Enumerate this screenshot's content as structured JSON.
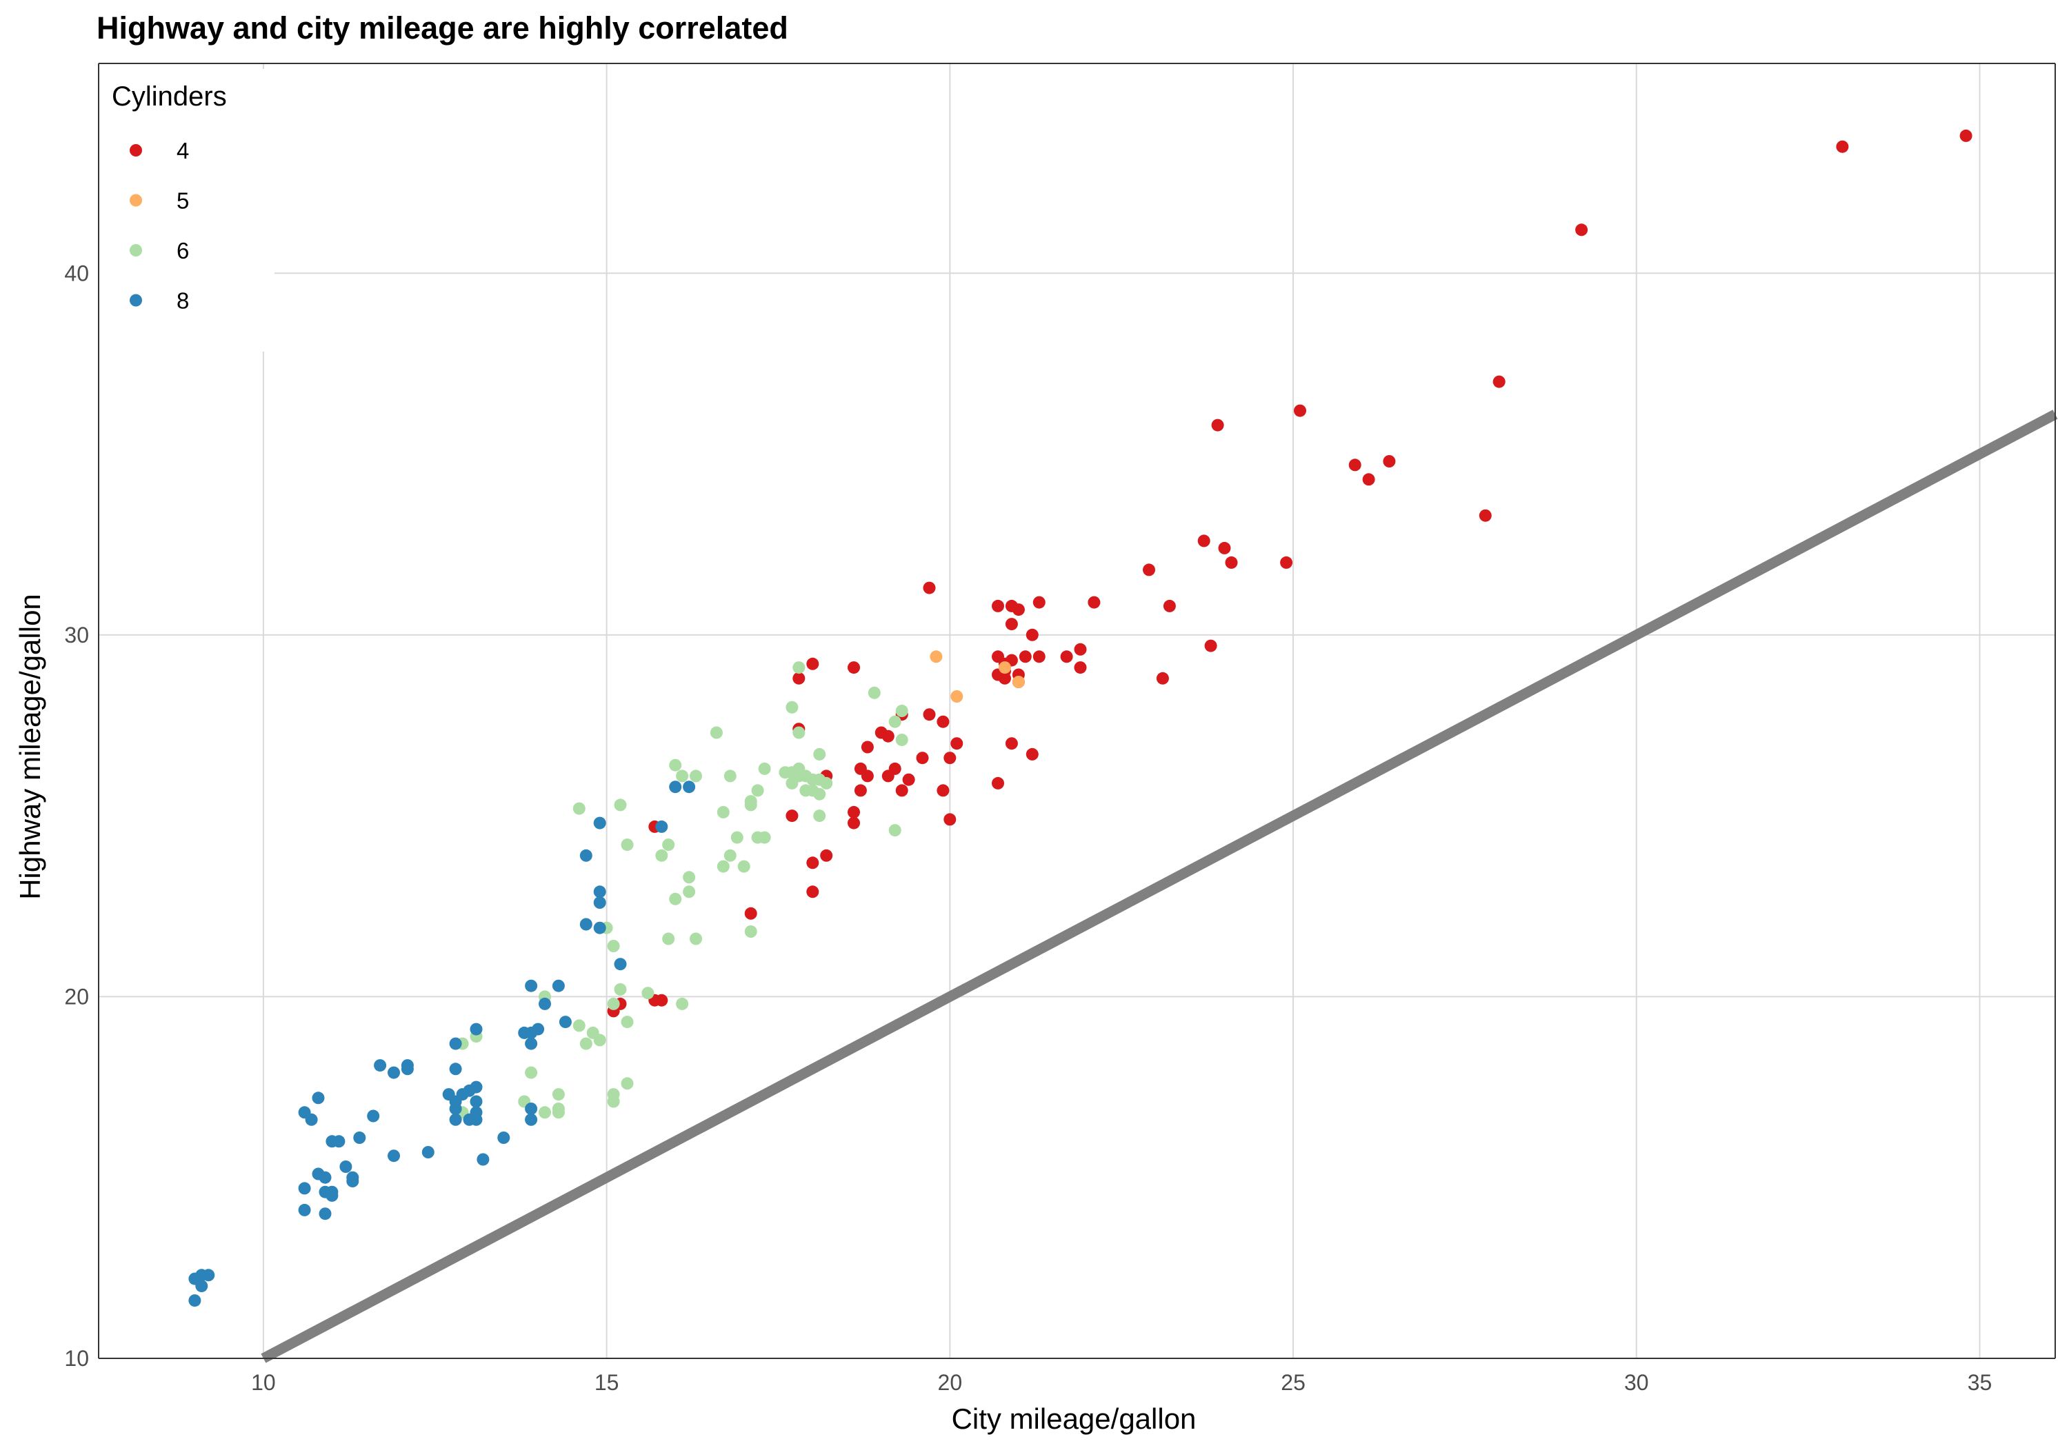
{
  "chart_data": {
    "type": "scatter",
    "title": "Highway and city mileage are highly correlated",
    "xlabel": "City mileage/gallon",
    "ylabel": "Highway mileage/gallon",
    "xlim": [
      7.6,
      36.1
    ],
    "ylim": [
      10,
      45.8
    ],
    "xticks": [
      10,
      15,
      20,
      25,
      30,
      35
    ],
    "yticks": [
      10,
      20,
      30,
      40
    ],
    "grid": true,
    "legend": {
      "title": "Cylinders",
      "placement": "top-left",
      "entries": [
        {
          "label": "4",
          "color": "#d7191c"
        },
        {
          "label": "5",
          "color": "#fdae61"
        },
        {
          "label": "6",
          "color": "#abdda4"
        },
        {
          "label": "8",
          "color": "#2b83ba"
        }
      ]
    },
    "reference_line": {
      "type": "y = x",
      "color": "#808080"
    },
    "series": [
      {
        "name": "4",
        "color": "#d7191c",
        "points": [
          [
            34.8,
            43.8
          ],
          [
            33.0,
            43.5
          ],
          [
            29.2,
            41.2
          ],
          [
            28.0,
            37.0
          ],
          [
            27.8,
            33.3
          ],
          [
            25.1,
            36.2
          ],
          [
            26.4,
            34.8
          ],
          [
            25.9,
            34.7
          ],
          [
            26.1,
            34.3
          ],
          [
            24.9,
            32.0
          ],
          [
            23.9,
            35.8
          ],
          [
            23.7,
            32.6
          ],
          [
            24.0,
            32.4
          ],
          [
            24.1,
            32.0
          ],
          [
            22.9,
            31.8
          ],
          [
            23.8,
            29.7
          ],
          [
            23.2,
            30.8
          ],
          [
            23.1,
            28.8
          ],
          [
            22.1,
            30.9
          ],
          [
            21.9,
            29.6
          ],
          [
            21.9,
            29.1
          ],
          [
            21.7,
            29.4
          ],
          [
            21.3,
            30.9
          ],
          [
            21.2,
            30.0
          ],
          [
            21.3,
            29.4
          ],
          [
            21.0,
            30.7
          ],
          [
            20.9,
            30.3
          ],
          [
            20.7,
            30.8
          ],
          [
            20.9,
            30.8
          ],
          [
            20.7,
            29.4
          ],
          [
            20.8,
            29.2
          ],
          [
            20.9,
            29.3
          ],
          [
            21.1,
            29.4
          ],
          [
            20.8,
            29.0
          ],
          [
            20.7,
            28.9
          ],
          [
            20.8,
            28.8
          ],
          [
            21.0,
            28.9
          ],
          [
            21.0,
            28.7
          ],
          [
            21.2,
            26.7
          ],
          [
            20.9,
            27.0
          ],
          [
            20.7,
            25.9
          ],
          [
            20.1,
            27.0
          ],
          [
            20.0,
            26.6
          ],
          [
            19.7,
            31.3
          ],
          [
            19.7,
            27.8
          ],
          [
            19.9,
            27.6
          ],
          [
            19.6,
            26.6
          ],
          [
            19.9,
            25.7
          ],
          [
            20.0,
            24.9
          ],
          [
            19.3,
            27.8
          ],
          [
            19.4,
            26.0
          ],
          [
            19.3,
            25.7
          ],
          [
            19.2,
            26.3
          ],
          [
            19.0,
            27.3
          ],
          [
            19.1,
            27.2
          ],
          [
            18.8,
            26.9
          ],
          [
            19.1,
            26.1
          ],
          [
            18.8,
            26.1
          ],
          [
            18.7,
            26.3
          ],
          [
            18.7,
            25.7
          ],
          [
            18.6,
            25.1
          ],
          [
            18.6,
            24.8
          ],
          [
            18.6,
            29.1
          ],
          [
            18.2,
            26.1
          ],
          [
            18.2,
            23.9
          ],
          [
            18.0,
            29.2
          ],
          [
            18.0,
            23.7
          ],
          [
            18.0,
            22.9
          ],
          [
            17.8,
            28.8
          ],
          [
            17.8,
            27.4
          ],
          [
            17.7,
            25.0
          ],
          [
            17.1,
            22.3
          ],
          [
            15.7,
            24.7
          ],
          [
            15.8,
            19.9
          ],
          [
            15.7,
            19.9
          ],
          [
            15.2,
            19.8
          ],
          [
            15.1,
            19.6
          ]
        ]
      },
      {
        "name": "5",
        "color": "#fdae61",
        "points": [
          [
            19.8,
            29.4
          ],
          [
            20.1,
            28.3
          ],
          [
            21.0,
            28.7
          ],
          [
            20.8,
            29.1
          ]
        ]
      },
      {
        "name": "6",
        "color": "#abdda4",
        "points": [
          [
            17.8,
            29.1
          ],
          [
            17.7,
            28.0
          ],
          [
            18.9,
            28.4
          ],
          [
            19.2,
            27.6
          ],
          [
            19.3,
            27.1
          ],
          [
            19.3,
            27.9
          ],
          [
            17.8,
            27.3
          ],
          [
            16.6,
            27.3
          ],
          [
            16.8,
            26.1
          ],
          [
            16.0,
            26.4
          ],
          [
            16.3,
            26.1
          ],
          [
            16.1,
            26.1
          ],
          [
            17.3,
            26.3
          ],
          [
            17.6,
            26.2
          ],
          [
            17.7,
            26.2
          ],
          [
            17.8,
            26.3
          ],
          [
            17.9,
            26.1
          ],
          [
            18.0,
            26.0
          ],
          [
            18.2,
            25.9
          ],
          [
            18.1,
            26.0
          ],
          [
            17.9,
            25.7
          ],
          [
            18.0,
            25.7
          ],
          [
            18.1,
            25.6
          ],
          [
            17.8,
            26.1
          ],
          [
            17.7,
            25.9
          ],
          [
            17.2,
            25.7
          ],
          [
            17.1,
            25.4
          ],
          [
            17.1,
            25.3
          ],
          [
            18.1,
            26.7
          ],
          [
            18.1,
            25.0
          ],
          [
            19.2,
            24.6
          ],
          [
            16.7,
            25.1
          ],
          [
            15.2,
            25.3
          ],
          [
            14.6,
            25.2
          ],
          [
            15.8,
            23.9
          ],
          [
            15.3,
            24.2
          ],
          [
            15.9,
            24.2
          ],
          [
            16.7,
            23.6
          ],
          [
            16.8,
            23.9
          ],
          [
            16.9,
            24.4
          ],
          [
            17.0,
            23.6
          ],
          [
            17.2,
            24.4
          ],
          [
            17.3,
            24.4
          ],
          [
            16.2,
            23.3
          ],
          [
            16.2,
            22.9
          ],
          [
            16.0,
            22.7
          ],
          [
            15.9,
            21.6
          ],
          [
            16.3,
            21.6
          ],
          [
            17.1,
            21.8
          ],
          [
            15.1,
            21.4
          ],
          [
            15.0,
            21.9
          ],
          [
            15.2,
            20.2
          ],
          [
            15.6,
            20.1
          ],
          [
            16.1,
            19.8
          ],
          [
            14.1,
            20.0
          ],
          [
            15.1,
            19.8
          ],
          [
            15.3,
            19.3
          ],
          [
            14.6,
            19.2
          ],
          [
            14.8,
            19.0
          ],
          [
            14.9,
            18.8
          ],
          [
            14.7,
            18.7
          ],
          [
            13.1,
            18.9
          ],
          [
            12.9,
            18.7
          ],
          [
            13.9,
            17.9
          ],
          [
            15.3,
            17.6
          ],
          [
            15.1,
            17.3
          ],
          [
            15.1,
            17.1
          ],
          [
            14.3,
            17.3
          ],
          [
            14.3,
            16.9
          ],
          [
            14.3,
            16.8
          ],
          [
            14.1,
            16.8
          ],
          [
            13.8,
            17.1
          ],
          [
            13.9,
            16.6
          ],
          [
            12.9,
            16.8
          ]
        ]
      },
      {
        "name": "8",
        "color": "#2b83ba",
        "points": [
          [
            16.2,
            25.8
          ],
          [
            16.0,
            25.8
          ],
          [
            15.8,
            24.7
          ],
          [
            14.9,
            24.8
          ],
          [
            14.7,
            23.9
          ],
          [
            14.9,
            22.9
          ],
          [
            14.9,
            22.6
          ],
          [
            14.7,
            22.0
          ],
          [
            14.9,
            21.9
          ],
          [
            15.2,
            20.9
          ],
          [
            13.9,
            20.3
          ],
          [
            14.3,
            20.3
          ],
          [
            14.1,
            19.8
          ],
          [
            13.9,
            19.0
          ],
          [
            14.0,
            19.1
          ],
          [
            13.8,
            19.0
          ],
          [
            14.4,
            19.3
          ],
          [
            13.9,
            18.7
          ],
          [
            13.1,
            19.1
          ],
          [
            12.8,
            18.7
          ],
          [
            12.1,
            18.1
          ],
          [
            12.1,
            18.0
          ],
          [
            11.7,
            18.1
          ],
          [
            11.9,
            17.9
          ],
          [
            12.8,
            18.0
          ],
          [
            13.0,
            17.4
          ],
          [
            12.9,
            17.3
          ],
          [
            13.1,
            17.5
          ],
          [
            12.7,
            17.3
          ],
          [
            12.8,
            17.1
          ],
          [
            13.1,
            17.1
          ],
          [
            12.8,
            16.9
          ],
          [
            13.1,
            16.8
          ],
          [
            13.0,
            16.6
          ],
          [
            13.1,
            16.6
          ],
          [
            12.8,
            16.6
          ],
          [
            13.9,
            16.9
          ],
          [
            13.9,
            16.6
          ],
          [
            11.6,
            16.7
          ],
          [
            10.8,
            17.2
          ],
          [
            10.6,
            16.8
          ],
          [
            10.7,
            16.6
          ],
          [
            11.0,
            16.0
          ],
          [
            11.1,
            16.0
          ],
          [
            11.4,
            16.1
          ],
          [
            13.5,
            16.1
          ],
          [
            12.4,
            15.7
          ],
          [
            11.9,
            15.6
          ],
          [
            13.2,
            15.5
          ],
          [
            11.2,
            15.3
          ],
          [
            11.3,
            15.0
          ],
          [
            11.3,
            14.9
          ],
          [
            10.8,
            15.1
          ],
          [
            10.9,
            15.0
          ],
          [
            10.6,
            14.7
          ],
          [
            10.9,
            14.6
          ],
          [
            11.0,
            14.5
          ],
          [
            11.0,
            14.6
          ],
          [
            10.6,
            14.1
          ],
          [
            10.9,
            14.0
          ],
          [
            9.2,
            12.3
          ],
          [
            9.1,
            12.3
          ],
          [
            9.0,
            12.2
          ],
          [
            9.1,
            12.0
          ],
          [
            9.0,
            11.6
          ]
        ]
      }
    ]
  }
}
